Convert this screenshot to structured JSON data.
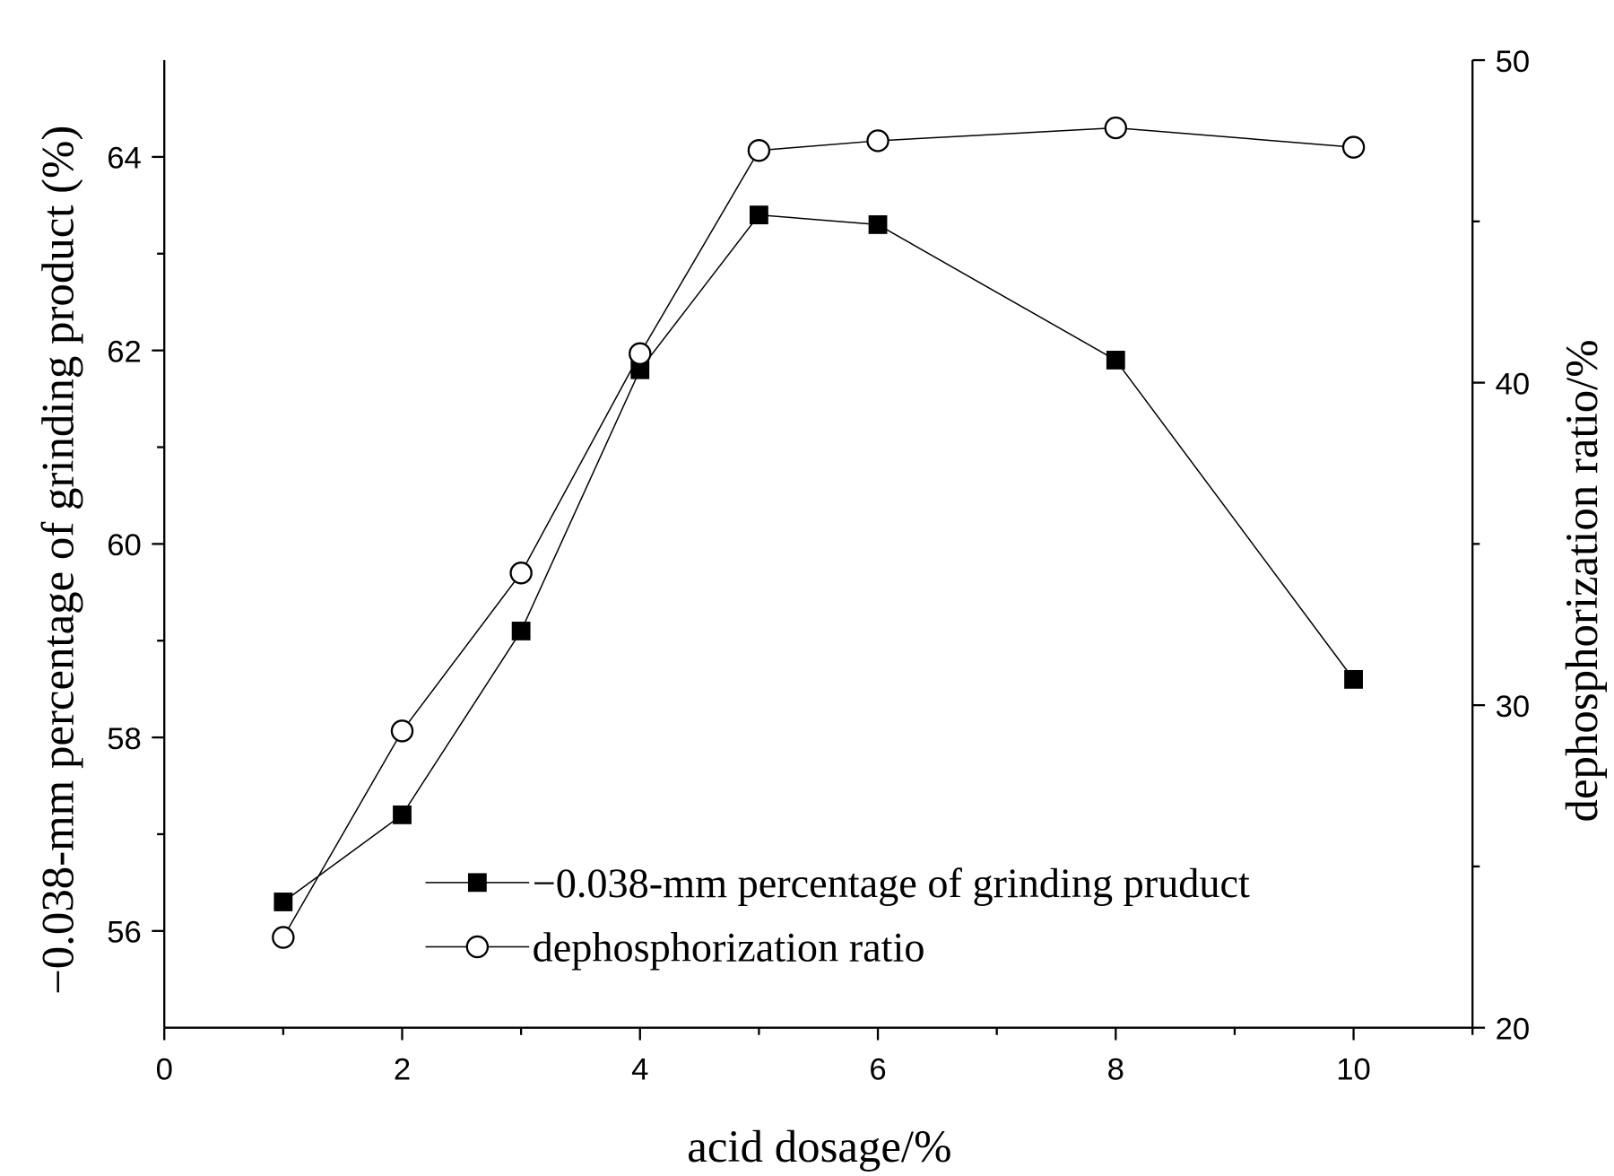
{
  "chart_data": {
    "type": "line",
    "x_label": "acid dosage/%",
    "y_label": "−0.038-mm percentage of grinding product (%)",
    "y2_label": "dephosphorization ratio/%",
    "x": [
      1,
      2,
      3,
      4,
      5,
      6,
      8,
      10
    ],
    "xlim": [
      0,
      11
    ],
    "xticks": [
      0,
      2,
      4,
      6,
      8,
      10
    ],
    "ylim": [
      55,
      65
    ],
    "yticks": [
      56,
      58,
      60,
      62,
      64
    ],
    "y2lim": [
      20,
      50
    ],
    "y2ticks": [
      20,
      30,
      40,
      50
    ],
    "legend": "lower right",
    "series": [
      {
        "name": "−0.038-mm percentage of grinding pruduct",
        "color": "#000000",
        "marker": "square",
        "values": [
          56.3,
          57.2,
          59.1,
          61.8,
          63.4,
          63.3,
          61.9,
          58.6
        ]
      },
      {
        "name": "dephosphorization ratio",
        "color": "#000000",
        "marker": "circle",
        "axis": "y2",
        "values": [
          22.8,
          29.2,
          34.1,
          40.9,
          47.2,
          47.5,
          47.9,
          47.3
        ]
      }
    ]
  }
}
